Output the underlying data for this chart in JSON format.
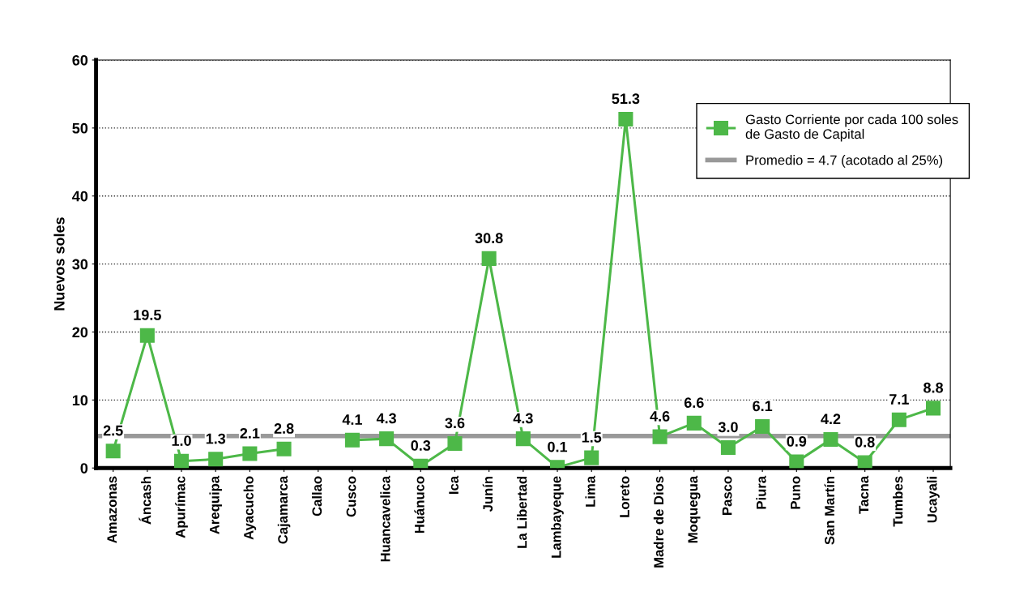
{
  "chart_data": {
    "type": "line",
    "ylabel": "Nuevos soles",
    "categories": [
      "Amazonas",
      "Áncash",
      "Apurímac",
      "Arequipa",
      "Ayacucho",
      "Cajamarca",
      "Callao",
      "Cusco",
      "Huancavelica",
      "Huánuco",
      "Ica",
      "Junín",
      "La Libertad",
      "Lambayeque",
      "Lima",
      "Loreto",
      "Madre de Dios",
      "Moquegua",
      "Pasco",
      "Piura",
      "Puno",
      "San Martín",
      "Tacna",
      "Tumbes",
      "Ucayali"
    ],
    "series": [
      {
        "name": "Gasto Corriente por cada 100 soles\nde Gasto de Capital",
        "color": "#4db848",
        "values": [
          2.5,
          19.5,
          1.0,
          1.3,
          2.1,
          2.8,
          null,
          4.1,
          4.3,
          0.3,
          3.6,
          30.8,
          4.3,
          0.1,
          1.5,
          51.3,
          4.6,
          6.6,
          3.0,
          6.1,
          0.9,
          4.2,
          0.8,
          7.1,
          8.8
        ]
      }
    ],
    "ylim": [
      0,
      60
    ],
    "yticks": [
      0,
      10,
      20,
      30,
      40,
      50,
      60
    ],
    "ref_lines": [
      {
        "axis": "y",
        "value": 4.7,
        "label": "Promedio = 4.7 (acotado al 25%)",
        "color": "#999999"
      }
    ],
    "value_labels": [
      "2.5",
      "19.5",
      "1.0",
      "1.3",
      "2.1",
      "2.8",
      null,
      "4.1",
      "4.3",
      "0.3",
      "3.6",
      "30.8",
      "4.3",
      "0.1",
      "1.5",
      "51.3",
      "4.6",
      "6.6",
      "3.0",
      "6.1",
      "0.9",
      "4.2",
      "0.8",
      "7.1",
      "8.8"
    ],
    "grid": "y",
    "legend": "top right",
    "marker": "square",
    "line_style": "solid"
  }
}
